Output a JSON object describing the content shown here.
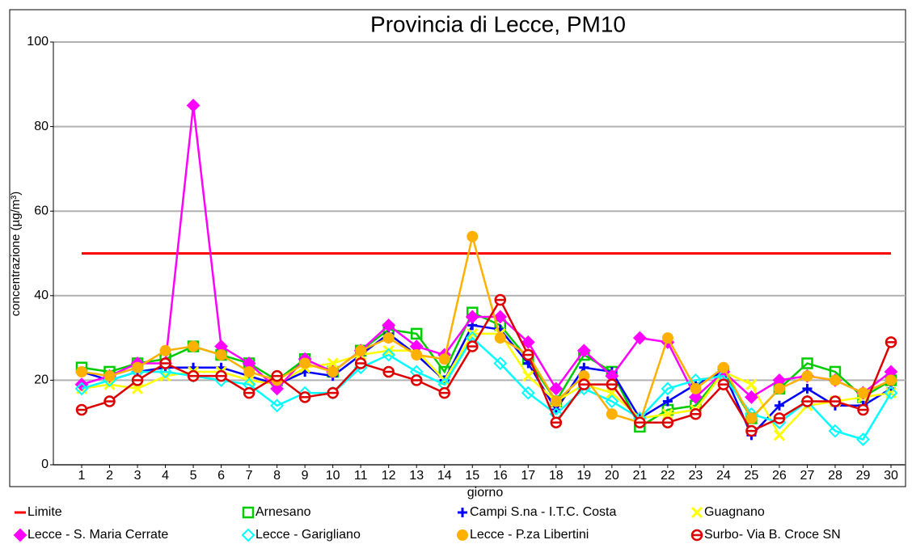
{
  "chart_data": {
    "type": "line",
    "title": "Provincia di Lecce, PM10",
    "x_label": "giorno",
    "y_label": "concentrazione (µg/m³)",
    "categories": [
      1,
      2,
      3,
      4,
      5,
      6,
      7,
      8,
      9,
      10,
      11,
      12,
      13,
      14,
      15,
      16,
      17,
      18,
      19,
      20,
      21,
      22,
      23,
      24,
      25,
      26,
      27,
      28,
      29,
      30
    ],
    "ylim": [
      0,
      100
    ],
    "yticks": [
      0,
      20,
      40,
      60,
      80,
      100
    ],
    "grid": true,
    "series": [
      {
        "name": "Limite",
        "color": "#ff0000",
        "marker": "none",
        "values": [
          50,
          50,
          50,
          50,
          50,
          50,
          50,
          50,
          50,
          50,
          50,
          50,
          50,
          50,
          50,
          50,
          50,
          50,
          50,
          50,
          50,
          50,
          50,
          50,
          50,
          50,
          50,
          50,
          50,
          50
        ]
      },
      {
        "name": "Arnesano",
        "color": "#00cc00",
        "marker": "square",
        "values": [
          23,
          22,
          24,
          25,
          28,
          26,
          24,
          20,
          25,
          22,
          27,
          32,
          31,
          22,
          36,
          33,
          25,
          15,
          26,
          22,
          9,
          13,
          14,
          22,
          11,
          18,
          24,
          22,
          16,
          20
        ]
      },
      {
        "name": "Campi S.na - I.T.C.  Costa",
        "color": "#0000ff",
        "marker": "plus",
        "values": [
          22,
          20,
          22,
          23,
          23,
          23,
          21,
          19,
          22,
          21,
          26,
          31,
          26,
          20,
          33,
          32,
          24,
          13,
          23,
          22,
          11,
          15,
          19,
          22,
          7,
          14,
          18,
          14,
          14,
          18
        ]
      },
      {
        "name": "Guagnano",
        "color": "#ffff00",
        "marker": "x",
        "values": [
          18,
          19,
          18,
          21,
          22,
          22,
          20,
          19,
          23,
          24,
          26,
          27,
          27,
          20,
          31,
          31,
          21,
          15,
          19,
          17,
          11,
          12,
          13,
          22,
          19,
          7,
          14,
          15,
          16,
          17
        ]
      },
      {
        "name": "Lecce - S. Maria Cerrate",
        "color": "#ff00ff",
        "marker": "diamond",
        "values": [
          19,
          21,
          24,
          24,
          85,
          28,
          24,
          18,
          25,
          22,
          27,
          33,
          28,
          26,
          35,
          35,
          29,
          18,
          27,
          21,
          30,
          29,
          16,
          22,
          16,
          20,
          21,
          20,
          17,
          22
        ]
      },
      {
        "name": "Lecce - Garigliano",
        "color": "#00ffff",
        "marker": "diamond-open",
        "values": [
          18,
          20,
          22,
          22,
          21,
          20,
          19,
          14,
          17,
          17,
          23,
          26,
          22,
          19,
          30,
          24,
          17,
          12,
          18,
          15,
          11,
          18,
          20,
          21,
          12,
          10,
          15,
          8,
          6,
          17
        ]
      },
      {
        "name": "Lecce - P.za Libertini",
        "color": "#ffb000",
        "marker": "circle",
        "values": [
          22,
          21,
          23,
          27,
          28,
          26,
          22,
          20,
          24,
          22,
          27,
          30,
          26,
          25,
          54,
          30,
          26,
          15,
          21,
          12,
          10,
          30,
          18,
          23,
          11,
          18,
          21,
          20,
          17,
          20
        ]
      },
      {
        "name": "Surbo- Via B. Croce SN",
        "color": "#dd0000",
        "marker": "circle-bar",
        "values": [
          13,
          15,
          20,
          24,
          21,
          21,
          17,
          21,
          16,
          17,
          24,
          22,
          20,
          17,
          28,
          39,
          26,
          10,
          19,
          19,
          10,
          10,
          12,
          19,
          8,
          11,
          15,
          15,
          13,
          29
        ]
      }
    ]
  }
}
